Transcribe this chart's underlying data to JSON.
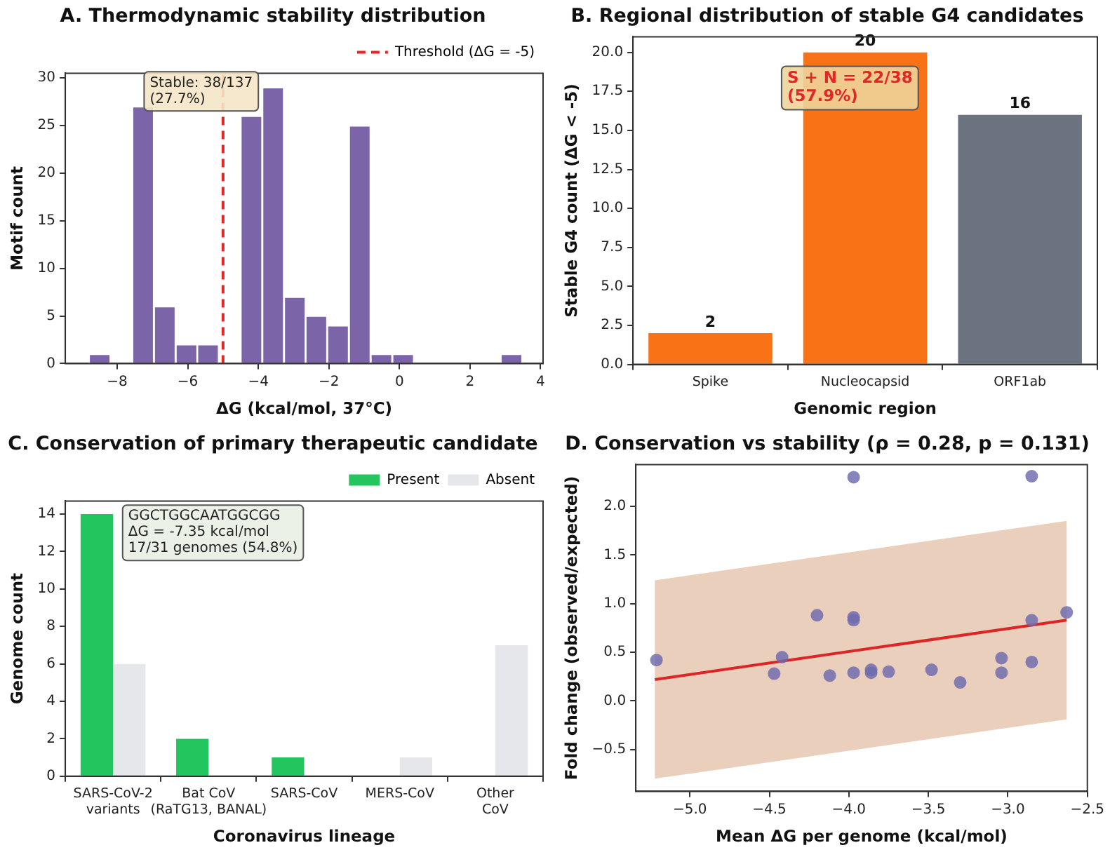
{
  "chart_data": [
    {
      "type": "histogram",
      "title": "A. Thermodynamic stability distribution",
      "xlabel": "ΔG (kcal/mol, 37°C)",
      "ylabel": "Motif count",
      "bins": [
        -8.8,
        -8.19,
        -7.57,
        -6.96,
        -6.34,
        -5.73,
        -5.12,
        -4.5,
        -3.89,
        -3.27,
        -2.66,
        -2.05,
        -1.43,
        -0.82,
        -0.2,
        0.41,
        1.02,
        1.64,
        2.25,
        2.87,
        3.48
      ],
      "values": [
        1,
        0,
        27,
        6,
        2,
        2,
        0,
        26,
        29,
        7,
        5,
        4,
        25,
        1,
        1,
        0,
        0,
        0,
        0,
        1
      ],
      "color": "#7b65a8",
      "xlim": [
        -9.47,
        4.07
      ],
      "xticks": [
        {
          "value": -8,
          "label": "−8"
        },
        {
          "value": -6,
          "label": "−6"
        },
        {
          "value": -4,
          "label": "−4"
        },
        {
          "value": -2,
          "label": "−2"
        },
        0,
        2,
        4
      ],
      "ylim": [
        0,
        30.5
      ],
      "yticks": [
        0,
        5,
        10,
        15,
        20,
        25,
        30
      ],
      "ref_lines": [
        {
          "axis": "x",
          "value": -5,
          "label": "Threshold (ΔG = -5)",
          "color": "#e32626",
          "line_style": "dashed"
        }
      ],
      "annotations": [
        "Stable: 38/137\n(27.7%)"
      ],
      "legend": "top right",
      "grid": false
    },
    {
      "type": "bar",
      "title": "B. Regional distribution of stable G4 candidates",
      "xlabel": "Genomic region",
      "ylabel": "Stable G4 count (ΔG < -5)",
      "categories": [
        "Spike",
        "Nucleocapsid",
        "ORF1ab"
      ],
      "values": [
        2,
        20,
        16
      ],
      "colors": [
        "#f97316",
        "#f97316",
        "#6b7280"
      ],
      "ylim": [
        0,
        21
      ],
      "yticks": [
        {
          "value": 0,
          "label": "0.0"
        },
        {
          "value": 2.5,
          "label": "2.5"
        },
        {
          "value": 5,
          "label": "5.0"
        },
        {
          "value": 7.5,
          "label": "7.5"
        },
        {
          "value": 10,
          "label": "10.0"
        },
        {
          "value": 12.5,
          "label": "12.5"
        },
        {
          "value": 15,
          "label": "15.0"
        },
        {
          "value": 17.5,
          "label": "17.5"
        },
        {
          "value": 20,
          "label": "20.0"
        }
      ],
      "data_labels": true,
      "annotations": [
        "S + N = 22/38\n(57.9%)"
      ],
      "grid": false
    },
    {
      "type": "bar",
      "title": "C. Conservation of primary therapeutic candidate",
      "xlabel": "Coronavirus lineage",
      "ylabel": "Genome count",
      "categories": [
        "SARS-CoV-2\nvariants",
        "Bat CoV\n(RaTG13, BANAL)",
        "SARS-CoV",
        "MERS-CoV",
        "Other\nCoV"
      ],
      "series": [
        {
          "name": "Present",
          "color": "#22c55e",
          "values": [
            14,
            2,
            1,
            0,
            0
          ]
        },
        {
          "name": "Absent",
          "color": "#e5e7eb",
          "values": [
            6,
            0,
            0,
            1,
            7
          ]
        }
      ],
      "ylim": [
        0,
        14.7
      ],
      "yticks": [
        0,
        2,
        4,
        6,
        8,
        10,
        12,
        14
      ],
      "annotations": [
        "GGCTGGCAATGGCGG\nΔG = -7.35 kcal/mol\n17/31 genomes (54.8%)"
      ],
      "legend": "top right",
      "grid": false
    },
    {
      "type": "scatter",
      "title": "D. Conservation vs stability (ρ = 0.28, p = 0.131)",
      "xlabel": "Mean ΔG per genome (kcal/mol)",
      "ylabel": "Fold change (observed/expected)",
      "series": [
        {
          "type": "scatter",
          "marker": "circle",
          "color": "#6d6aad",
          "x": [
            -5.21,
            -4.42,
            -4.47,
            -4.2,
            -4.12,
            -3.97,
            -3.97,
            -3.97,
            -3.97,
            -3.86,
            -3.86,
            -3.75,
            -3.48,
            -3.3,
            -3.04,
            -3.04,
            -2.85,
            -2.85,
            -2.85,
            -2.63
          ],
          "values": [
            0.42,
            0.45,
            0.28,
            0.88,
            0.26,
            2.3,
            0.86,
            0.83,
            0.29,
            0.32,
            0.29,
            0.3,
            0.32,
            0.19,
            0.44,
            0.29,
            2.31,
            0.83,
            0.4,
            0.91
          ]
        },
        {
          "type": "line",
          "marker": "none",
          "color": "#dc2626",
          "x": [
            -5.22,
            -2.63
          ],
          "values": [
            0.22,
            0.83
          ],
          "lower": [
            -0.8,
            -0.19
          ],
          "upper": [
            1.24,
            1.85
          ]
        }
      ],
      "xlim": [
        -5.34,
        -2.5
      ],
      "xticks": [
        {
          "value": -5,
          "label": "−5.0"
        },
        {
          "value": -4.5,
          "label": "−4.5"
        },
        {
          "value": -4,
          "label": "−4.0"
        },
        {
          "value": -3.5,
          "label": "−3.5"
        },
        {
          "value": -3,
          "label": "−3.0"
        },
        {
          "value": -2.5,
          "label": "−2.5"
        }
      ],
      "ylim": [
        -0.93,
        2.43
      ],
      "yticks": [
        {
          "value": -0.5,
          "label": "−0.5"
        },
        {
          "value": 0,
          "label": "0.0"
        },
        {
          "value": 0.5,
          "label": "0.5"
        },
        {
          "value": 1,
          "label": "1.0"
        },
        {
          "value": 1.5,
          "label": "1.5"
        },
        {
          "value": 2,
          "label": "2.0"
        }
      ],
      "line_style": "solid",
      "grid": false
    }
  ]
}
